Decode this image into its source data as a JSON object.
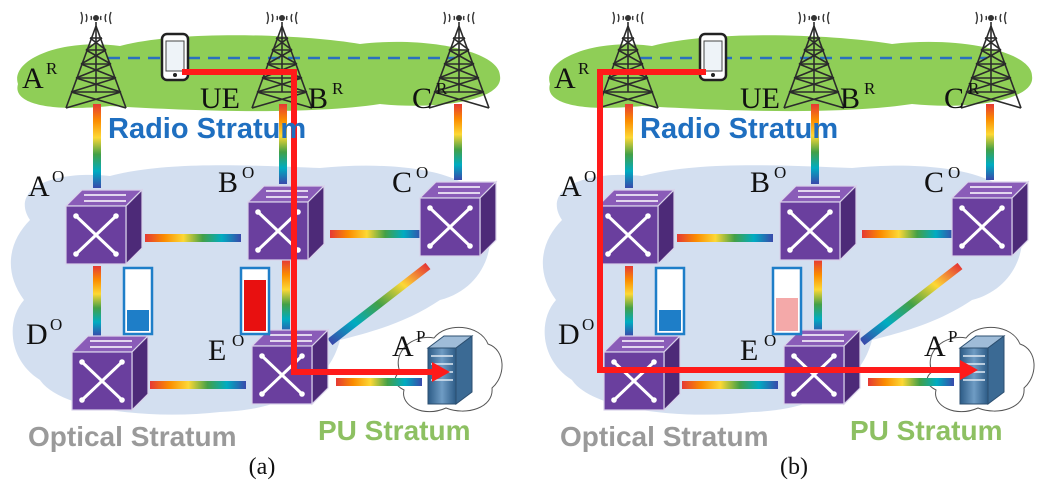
{
  "panels": [
    {
      "caption": "(a)",
      "radio_stratum_label": "Radio Stratum",
      "optical_stratum_label": "Optical Stratum",
      "pu_stratum_label": "PU Stratum",
      "nodes": {
        "AR": {
          "main": "A",
          "sup": "R"
        },
        "BR": {
          "main": "B",
          "sup": "R"
        },
        "CR": {
          "main": "C",
          "sup": "R"
        },
        "UE": {
          "main": "UE"
        },
        "AO": {
          "main": "A",
          "sup": "O"
        },
        "BO": {
          "main": "B",
          "sup": "O"
        },
        "CO": {
          "main": "C",
          "sup": "O"
        },
        "DO": {
          "main": "D",
          "sup": "O"
        },
        "EO": {
          "main": "E",
          "sup": "O"
        },
        "AP": {
          "main": "A",
          "sup": "P"
        }
      },
      "load_indicators": [
        {
          "name": "left",
          "fill_fraction": 0.35,
          "color": "#1e7ec8"
        },
        {
          "name": "right",
          "fill_fraction": 0.85,
          "color": "#e81010"
        }
      ],
      "path_color": "#ff1a1a"
    },
    {
      "caption": "(b)",
      "radio_stratum_label": "Radio Stratum",
      "optical_stratum_label": "Optical Stratum",
      "pu_stratum_label": "PU Stratum",
      "nodes": {
        "AR": {
          "main": "A",
          "sup": "R"
        },
        "BR": {
          "main": "B",
          "sup": "R"
        },
        "CR": {
          "main": "C",
          "sup": "R"
        },
        "UE": {
          "main": "UE"
        },
        "AO": {
          "main": "A",
          "sup": "O"
        },
        "BO": {
          "main": "B",
          "sup": "O"
        },
        "CO": {
          "main": "C",
          "sup": "O"
        },
        "DO": {
          "main": "D",
          "sup": "O"
        },
        "EO": {
          "main": "E",
          "sup": "O"
        },
        "AP": {
          "main": "A",
          "sup": "P"
        }
      },
      "load_indicators": [
        {
          "name": "left",
          "fill_fraction": 0.35,
          "color": "#1e7ec8"
        },
        {
          "name": "right",
          "fill_fraction": 0.55,
          "color": "#f4a9a9"
        }
      ],
      "path_color": "#ff1a1a"
    }
  ]
}
